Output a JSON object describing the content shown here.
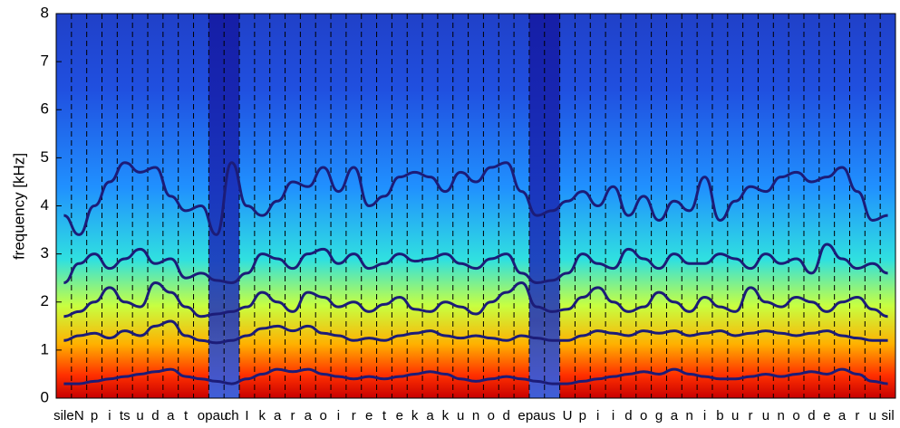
{
  "chart_data": {
    "type": "spectrogram",
    "ylabel": "frequency [kHz]",
    "ylim": [
      0,
      8
    ],
    "yticks": [
      0,
      1,
      2,
      3,
      4,
      5,
      6,
      7,
      8
    ],
    "categories": [
      "sile",
      "N",
      "p",
      "i",
      "ts",
      "u",
      "d",
      "a",
      "t",
      "o",
      "pau",
      "ch",
      "I",
      "k",
      "a",
      "r",
      "a",
      "o",
      "i",
      "r",
      "e",
      "t",
      "e",
      "k",
      "a",
      "k",
      "u",
      "n",
      "o",
      "d",
      "e",
      "pau",
      "s",
      "U",
      "p",
      "i",
      "i",
      "d",
      "o",
      "g",
      "a",
      "n",
      "i",
      "b",
      "u",
      "r",
      "u",
      "n",
      "o",
      "d",
      "e",
      "a",
      "r",
      "u",
      "sil"
    ],
    "series": [
      {
        "color": "#1c1c78",
        "values": [
          0.3,
          0.3,
          0.35,
          0.4,
          0.45,
          0.5,
          0.55,
          0.6,
          0.45,
          0.4,
          0.35,
          0.3,
          0.4,
          0.5,
          0.6,
          0.55,
          0.6,
          0.5,
          0.45,
          0.4,
          0.45,
          0.4,
          0.45,
          0.5,
          0.55,
          0.5,
          0.4,
          0.35,
          0.4,
          0.45,
          0.4,
          0.35,
          0.3,
          0.3,
          0.35,
          0.4,
          0.45,
          0.5,
          0.55,
          0.5,
          0.6,
          0.5,
          0.45,
          0.4,
          0.4,
          0.45,
          0.5,
          0.45,
          0.5,
          0.55,
          0.5,
          0.6,
          0.5,
          0.35,
          0.3
        ]
      },
      {
        "color": "#1c1c78",
        "values": [
          1.2,
          1.3,
          1.35,
          1.25,
          1.4,
          1.3,
          1.5,
          1.6,
          1.3,
          1.2,
          1.15,
          1.2,
          1.3,
          1.45,
          1.5,
          1.4,
          1.5,
          1.35,
          1.3,
          1.2,
          1.25,
          1.2,
          1.3,
          1.35,
          1.4,
          1.3,
          1.25,
          1.3,
          1.25,
          1.2,
          1.3,
          1.25,
          1.2,
          1.2,
          1.3,
          1.4,
          1.35,
          1.3,
          1.4,
          1.35,
          1.4,
          1.3,
          1.35,
          1.4,
          1.3,
          1.35,
          1.4,
          1.35,
          1.3,
          1.35,
          1.4,
          1.3,
          1.25,
          1.2,
          1.2
        ]
      },
      {
        "color": "#1c1c78",
        "values": [
          1.7,
          1.8,
          2.0,
          2.3,
          2.0,
          1.9,
          2.4,
          2.2,
          1.9,
          1.7,
          1.75,
          1.8,
          1.9,
          2.2,
          2.0,
          1.8,
          2.2,
          2.1,
          1.9,
          2.0,
          1.8,
          1.95,
          2.1,
          1.85,
          1.8,
          2.0,
          1.9,
          1.75,
          2.0,
          2.2,
          2.4,
          1.9,
          1.8,
          1.85,
          2.1,
          2.3,
          2.0,
          1.8,
          1.9,
          2.2,
          2.0,
          1.8,
          2.1,
          1.9,
          1.8,
          2.3,
          2.0,
          1.9,
          2.1,
          2.0,
          1.8,
          2.0,
          2.1,
          1.85,
          1.7
        ]
      },
      {
        "color": "#1c1c78",
        "values": [
          2.4,
          2.8,
          3.0,
          2.7,
          2.9,
          3.1,
          2.8,
          2.9,
          2.5,
          2.6,
          2.45,
          2.4,
          2.6,
          3.0,
          2.9,
          2.7,
          3.0,
          3.1,
          2.8,
          3.0,
          2.7,
          2.8,
          3.0,
          2.85,
          2.9,
          3.0,
          2.8,
          2.7,
          2.9,
          3.0,
          2.6,
          2.4,
          2.45,
          2.6,
          3.0,
          2.8,
          2.7,
          3.1,
          2.9,
          2.7,
          3.0,
          2.8,
          2.8,
          3.0,
          2.9,
          2.7,
          3.0,
          2.8,
          2.9,
          2.6,
          3.2,
          2.9,
          2.7,
          2.8,
          2.6
        ]
      },
      {
        "color": "#1c1c78",
        "values": [
          3.8,
          3.4,
          4.0,
          4.5,
          4.9,
          4.7,
          4.8,
          4.2,
          3.9,
          4.0,
          3.4,
          4.9,
          4.0,
          3.8,
          4.1,
          4.5,
          4.4,
          4.8,
          4.3,
          4.8,
          4.0,
          4.2,
          4.6,
          4.7,
          4.6,
          4.3,
          4.7,
          4.5,
          4.8,
          4.9,
          4.3,
          3.8,
          3.9,
          4.1,
          4.3,
          4.0,
          4.4,
          3.8,
          4.2,
          3.7,
          4.1,
          3.9,
          4.6,
          3.7,
          4.1,
          4.4,
          4.3,
          4.6,
          4.7,
          4.5,
          4.6,
          4.8,
          4.3,
          3.7,
          3.8
        ]
      }
    ]
  }
}
